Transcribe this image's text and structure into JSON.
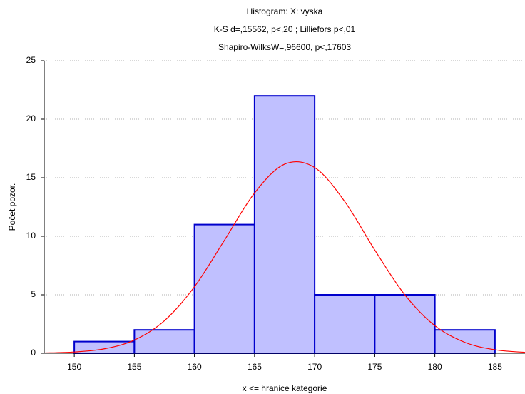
{
  "chart_data": {
    "type": "histogram",
    "title": "Histogram: X: vyska",
    "subtitle": "K-S d=,15562, p<,20 ; Lilliefors p<,01",
    "subtitle2": "Shapiro-WilksW=,96600, p<,17603",
    "xlabel": "x <= hranice kategorie",
    "ylabel": "Počet pozor.",
    "bins": [
      150,
      155,
      160,
      165,
      170,
      175,
      180,
      185
    ],
    "values": [
      1,
      2,
      11,
      22,
      5,
      5,
      2
    ],
    "color": "#c0c0ff",
    "edgecolor": "#0000cc",
    "curve": {
      "x": [
        147.5,
        150,
        152.5,
        155,
        157.5,
        160,
        162.5,
        165,
        167.5,
        170,
        172.5,
        175,
        177.5,
        180,
        182.5,
        185,
        187.5
      ],
      "values": [
        0.026,
        0.11,
        0.38,
        1.13,
        2.78,
        5.69,
        9.67,
        13.7,
        16.16,
        15.87,
        12.97,
        8.83,
        5.0,
        2.36,
        0.93,
        0.3,
        0.08
      ],
      "color": "#ff0000"
    },
    "xlim": [
      147.5,
      187.5
    ],
    "xticks": [
      150,
      155,
      160,
      165,
      170,
      175,
      180,
      185
    ],
    "ylim": [
      0,
      25
    ],
    "yticks": [
      0,
      5,
      10,
      15,
      20,
      25
    ],
    "grid": true
  }
}
